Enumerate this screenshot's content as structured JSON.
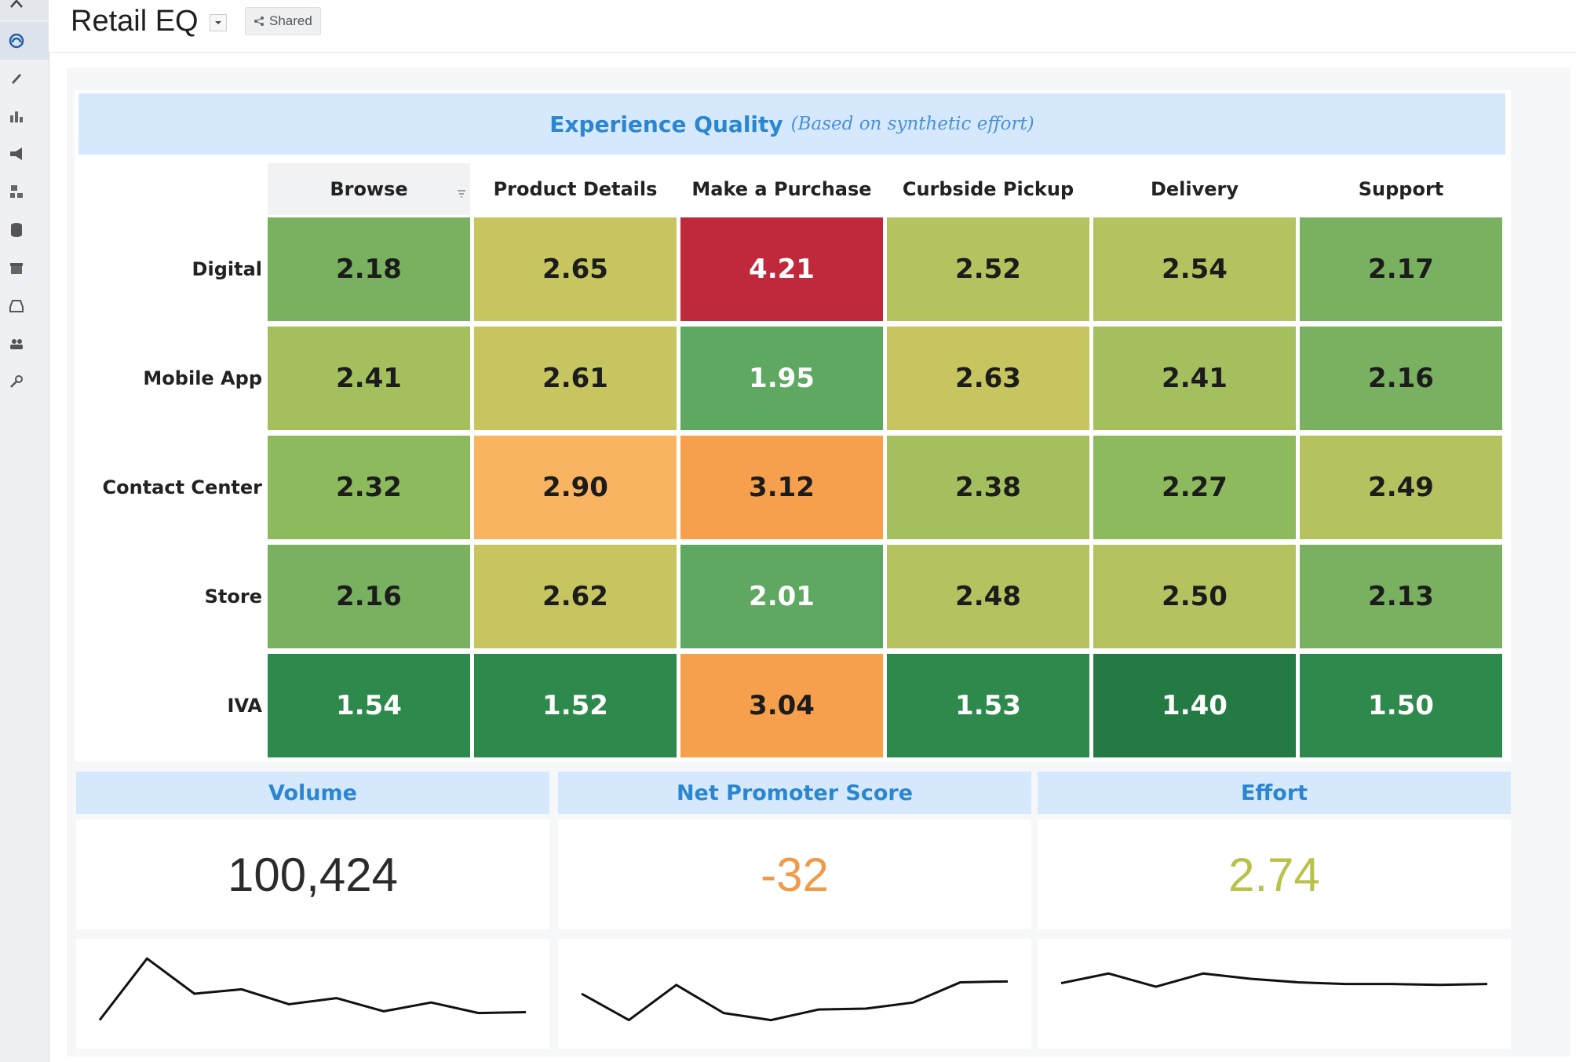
{
  "header": {
    "title": "Retail EQ",
    "shared_label": "Shared"
  },
  "sidebar": {
    "icons": [
      "home-icon",
      "gauge-icon",
      "pencil-icon",
      "chart-icon",
      "megaphone-icon",
      "org-icon",
      "database-icon",
      "gift-icon",
      "inbox-icon",
      "users-icon",
      "key-icon"
    ]
  },
  "experience_quality": {
    "title": "Experience Quality",
    "subtitle": "(Based on synthetic effort)",
    "columns": [
      "Browse",
      "Product Details",
      "Make a Purchase",
      "Curbside Pickup",
      "Delivery",
      "Support"
    ],
    "rows": [
      {
        "label": "Digital",
        "values": [
          "2.18",
          "2.65",
          "4.21",
          "2.52",
          "2.54",
          "2.17"
        ]
      },
      {
        "label": "Mobile App",
        "values": [
          "2.41",
          "2.61",
          "1.95",
          "2.63",
          "2.41",
          "2.16"
        ]
      },
      {
        "label": "Contact Center",
        "values": [
          "2.32",
          "2.90",
          "3.12",
          "2.38",
          "2.27",
          "2.49"
        ]
      },
      {
        "label": "Store",
        "values": [
          "2.16",
          "2.62",
          "2.01",
          "2.48",
          "2.50",
          "2.13"
        ]
      },
      {
        "label": "IVA",
        "values": [
          "1.54",
          "1.52",
          "3.04",
          "1.53",
          "1.40",
          "1.50"
        ]
      }
    ]
  },
  "kpis": {
    "volume": {
      "label": "Volume",
      "value": "100,424",
      "color": "#2b2b2b",
      "trend": [
        2,
        9,
        5,
        5.5,
        3.8,
        4.5,
        3,
        4,
        2.8,
        2.9
      ]
    },
    "nps": {
      "label": "Net Promoter Score",
      "value": "-32",
      "color": "#ef9b4a",
      "trend": [
        5,
        2,
        6,
        2.8,
        2,
        3.2,
        3.3,
        4,
        6.3,
        6.4
      ]
    },
    "effort": {
      "label": "Effort",
      "value": "2.74",
      "color": "#b8c24a",
      "trend": [
        6.2,
        7.3,
        5.8,
        7.3,
        6.7,
        6.3,
        6.1,
        6.1,
        6.0,
        6.1
      ]
    }
  },
  "colors": {
    "accent": "#2a86d0",
    "banner_bg": "#d6e8fb"
  },
  "chart_data": {
    "type": "heatmap",
    "title": "Experience Quality (Based on synthetic effort)",
    "x": [
      "Browse",
      "Product Details",
      "Make a Purchase",
      "Curbside Pickup",
      "Delivery",
      "Support"
    ],
    "y": [
      "Digital",
      "Mobile App",
      "Contact Center",
      "Store",
      "IVA"
    ],
    "values": [
      [
        2.18,
        2.65,
        4.21,
        2.52,
        2.54,
        2.17
      ],
      [
        2.41,
        2.61,
        1.95,
        2.63,
        2.41,
        2.16
      ],
      [
        2.32,
        2.9,
        3.12,
        2.38,
        2.27,
        2.49
      ],
      [
        2.16,
        2.62,
        2.01,
        2.48,
        2.5,
        2.13
      ],
      [
        1.54,
        1.52,
        3.04,
        1.53,
        1.4,
        1.5
      ]
    ]
  }
}
